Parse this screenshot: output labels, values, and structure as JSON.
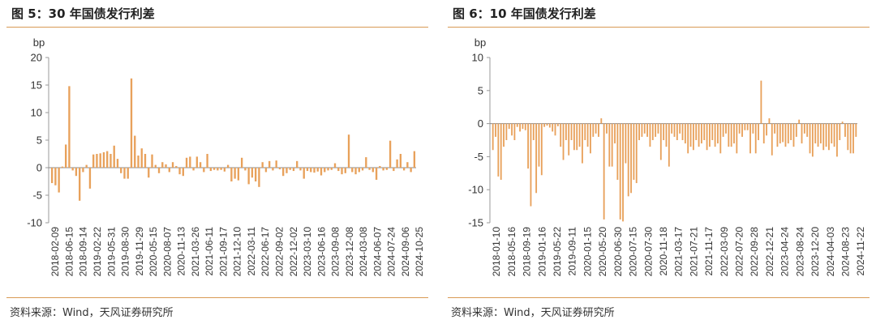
{
  "figures": [
    {
      "title": "图 5：30 年国债发行利差",
      "source": "资料来源：Wind，天风证券研究所"
    },
    {
      "title": "图 6：10 年国债发行利差",
      "source": "资料来源：Wind，天风证券研究所"
    }
  ],
  "chart_data": [
    {
      "type": "bar",
      "title": "30 年国债发行利差",
      "ylabel": "bp",
      "xlabel": "",
      "ylim": [
        -10,
        20
      ],
      "yticks": [
        -10,
        -5,
        0,
        5,
        10,
        15,
        20
      ],
      "grid": false,
      "bar_color": "#e8a15b",
      "tick_labels": [
        "2018-02-09",
        "2018-06-15",
        "2018-09-14",
        "2019-02-22",
        "2019-05-31",
        "2019-08-30",
        "2019-11-29",
        "2020-05-15",
        "2020-08-07",
        "2020-11-13",
        "2021-03-26",
        "2021-06-11",
        "2021-09-17",
        "2021-12-10",
        "2022-03-11",
        "2022-06-17",
        "2022-09-02",
        "2022-12-02",
        "2023-03-10",
        "2023-06-16",
        "2023-09-08",
        "2023-12-08",
        "2024-03-08",
        "2024-06-07",
        "2024-07-24",
        "2024-09-06",
        "2024-10-25"
      ],
      "values": [
        -2.8,
        -3.2,
        -4.5,
        0.2,
        4.2,
        14.8,
        -0.5,
        -1.5,
        -6.0,
        -0.8,
        0.5,
        -3.8,
        2.4,
        2.5,
        2.6,
        2.8,
        3.0,
        2.5,
        4.0,
        1.6,
        -1.0,
        -2.0,
        -2.0,
        16.2,
        5.8,
        2.2,
        3.5,
        2.5,
        -1.8,
        2.4,
        0.5,
        -1.0,
        1.0,
        0.6,
        -0.8,
        1.0,
        0.3,
        -1.2,
        -1.5,
        1.8,
        2.0,
        -0.5,
        2.0,
        1.0,
        -0.8,
        2.5,
        -0.6,
        -0.4,
        -0.5,
        -0.4,
        -0.7,
        0.5,
        -2.5,
        -2.0,
        -2.3,
        1.8,
        -0.5,
        -3.0,
        -1.8,
        -2.5,
        -3.5,
        1.0,
        -0.8,
        1.2,
        -0.5,
        1.3,
        -0.3,
        -1.5,
        -1.0,
        -0.4,
        -0.6,
        1.2,
        -0.5,
        -2.0,
        -0.6,
        -0.8,
        -0.9,
        -0.7,
        -1.4,
        -0.8,
        -0.5,
        -0.4,
        0.8,
        -0.6,
        -1.2,
        -1.0,
        6.0,
        -0.8,
        -1.2,
        -0.8,
        -0.5,
        1.9,
        -0.4,
        -0.8,
        -2.2,
        0.3,
        -0.5,
        -0.4,
        4.9,
        -0.6,
        1.5,
        2.5,
        -0.5,
        1.0,
        -0.8,
        3.0
      ]
    },
    {
      "type": "bar",
      "title": "10 年国债发行利差",
      "ylabel": "bp",
      "xlabel": "",
      "ylim": [
        -15,
        10
      ],
      "yticks": [
        -15,
        -10,
        -5,
        0,
        5,
        10
      ],
      "grid": false,
      "bar_color": "#e8a15b",
      "tick_labels": [
        "2018-01-10",
        "2018-05-16",
        "2018-09-19",
        "2019-01-16",
        "2019-05-22",
        "2019-09-11",
        "2020-01-15",
        "2020-05-20",
        "2020-06-30",
        "2020-07-15",
        "2020-07-30",
        "2020-11-18",
        "2021-03-17",
        "2021-07-21",
        "2021-11-17",
        "2022-03-09",
        "2022-07-20",
        "2022-09-28",
        "2022-12-21",
        "2023-04-24",
        "2023-08-24",
        "2023-12-20",
        "2024-04-03",
        "2024-08-23",
        "2024-11-22"
      ],
      "values": [
        -4.0,
        -2.0,
        -8.0,
        -8.5,
        -3.5,
        -2.5,
        -0.8,
        -1.8,
        -2.5,
        -0.5,
        -1.2,
        -0.8,
        -1.0,
        -6.8,
        -12.5,
        -2.5,
        -10.5,
        -6.5,
        -7.8,
        -0.5,
        -0.3,
        -0.6,
        -1.2,
        -1.8,
        -0.4,
        -3.5,
        -5.5,
        -2.5,
        -4.8,
        -2.5,
        -4.0,
        -4.0,
        -3.5,
        -6.0,
        -2.5,
        -3.5,
        -4.5,
        -2.0,
        -1.5,
        -2.0,
        0.8,
        -14.5,
        -1.5,
        -6.5,
        -6.5,
        -3.0,
        -8.5,
        -14.5,
        -14.8,
        -6.0,
        -11.0,
        -10.5,
        -8.5,
        -9.0,
        -2.5,
        -2.0,
        -1.5,
        -2.0,
        -3.5,
        -2.5,
        -2.0,
        -1.5,
        -5.5,
        -2.5,
        -3.5,
        -6.5,
        -1.5,
        -2.0,
        -2.5,
        -1.5,
        -2.5,
        -3.0,
        -4.5,
        -3.5,
        -4.0,
        -2.5,
        -3.5,
        -3.0,
        -2.5,
        -4.0,
        -3.5,
        -2.5,
        -3.5,
        -3.0,
        -4.5,
        -2.0,
        -1.5,
        -3.5,
        -3.5,
        -3.0,
        -4.5,
        -1.5,
        -2.0,
        -1.0,
        -1.0,
        -4.5,
        -1.5,
        -4.5,
        -2.5,
        6.5,
        -3.0,
        -1.8,
        0.8,
        -4.8,
        -1.5,
        -3.5,
        -3.0,
        -2.8,
        -3.5,
        -3.0,
        -2.5,
        -3.5,
        -2.0,
        0.6,
        -3.0,
        -1.5,
        -2.0,
        -4.5,
        -5.0,
        -3.0,
        -3.5,
        -3.0,
        -4.0,
        -3.5,
        -4.0,
        -3.0,
        -3.5,
        -5.0,
        -2.5,
        0.3,
        -2.0,
        -4.0,
        -4.5,
        -4.5,
        -2.0
      ]
    }
  ]
}
